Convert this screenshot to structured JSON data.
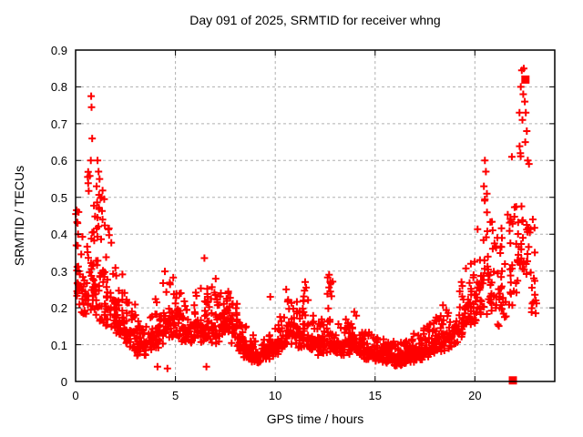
{
  "chart_data": {
    "type": "scatter",
    "title": "Day 091 of 2025, SRMTID for receiver whng",
    "xlabel": "GPS time / hours",
    "ylabel": "SRMTID / TECUs",
    "xlim": [
      0,
      24
    ],
    "ylim": [
      0,
      0.9
    ],
    "grid": true,
    "legend": "none",
    "x_tick_values": [
      0,
      5,
      10,
      15,
      20
    ],
    "x_tick_labels": [
      "0",
      "5",
      "10",
      "15",
      "20"
    ],
    "y_tick_values": [
      0,
      0.1,
      0.2,
      0.3,
      0.4,
      0.5,
      0.6,
      0.7,
      0.8,
      0.9
    ],
    "y_tick_labels": [
      "0",
      "0.1",
      "0.2",
      "0.3",
      "0.4",
      "0.5",
      "0.6",
      "0.7",
      "0.8",
      "0.9"
    ],
    "colors": {
      "marker": "#ff0000",
      "grid": "#b0b0b0",
      "axis": "#000000"
    },
    "series": [
      {
        "name": "srmtid-plus-markers",
        "marker": "plus",
        "color": "#ff0000",
        "bin_format": [
          "hour_start",
          "hour_end",
          "count",
          "y_min",
          "y_max"
        ],
        "density_bins": [
          [
            0.0,
            0.3,
            22,
            0.2,
            0.47
          ],
          [
            0.3,
            0.6,
            22,
            0.18,
            0.4
          ],
          [
            0.6,
            0.9,
            26,
            0.17,
            0.58
          ],
          [
            0.9,
            1.2,
            28,
            0.18,
            0.56
          ],
          [
            1.2,
            1.5,
            26,
            0.15,
            0.52
          ],
          [
            1.5,
            1.8,
            24,
            0.14,
            0.42
          ],
          [
            1.8,
            2.1,
            24,
            0.13,
            0.35
          ],
          [
            2.1,
            2.4,
            22,
            0.12,
            0.3
          ],
          [
            2.4,
            2.7,
            22,
            0.1,
            0.26
          ],
          [
            2.7,
            3.0,
            22,
            0.08,
            0.22
          ],
          [
            3.0,
            3.3,
            24,
            0.07,
            0.17
          ],
          [
            3.3,
            3.6,
            22,
            0.07,
            0.16
          ],
          [
            3.6,
            3.9,
            20,
            0.08,
            0.2
          ],
          [
            3.9,
            4.2,
            20,
            0.09,
            0.24
          ],
          [
            4.2,
            4.5,
            22,
            0.1,
            0.31
          ],
          [
            4.5,
            4.8,
            20,
            0.1,
            0.27
          ],
          [
            4.8,
            5.1,
            20,
            0.1,
            0.32
          ],
          [
            5.1,
            5.4,
            20,
            0.1,
            0.24
          ],
          [
            5.4,
            5.7,
            20,
            0.1,
            0.22
          ],
          [
            5.7,
            6.0,
            20,
            0.1,
            0.24
          ],
          [
            6.0,
            6.3,
            20,
            0.1,
            0.26
          ],
          [
            6.3,
            6.6,
            22,
            0.11,
            0.34
          ],
          [
            6.6,
            6.9,
            20,
            0.1,
            0.28
          ],
          [
            6.9,
            7.2,
            22,
            0.1,
            0.28
          ],
          [
            7.2,
            7.5,
            22,
            0.11,
            0.26
          ],
          [
            7.5,
            7.8,
            22,
            0.12,
            0.25
          ],
          [
            7.8,
            8.1,
            22,
            0.1,
            0.22
          ],
          [
            8.1,
            8.4,
            22,
            0.08,
            0.18
          ],
          [
            8.4,
            8.7,
            24,
            0.06,
            0.15
          ],
          [
            8.7,
            9.0,
            22,
            0.05,
            0.13
          ],
          [
            9.0,
            9.3,
            22,
            0.05,
            0.12
          ],
          [
            9.3,
            9.6,
            22,
            0.06,
            0.13
          ],
          [
            9.6,
            9.9,
            22,
            0.06,
            0.14
          ],
          [
            9.9,
            10.2,
            22,
            0.07,
            0.16
          ],
          [
            10.2,
            10.5,
            22,
            0.08,
            0.18
          ],
          [
            10.5,
            10.8,
            22,
            0.1,
            0.24
          ],
          [
            10.8,
            11.1,
            22,
            0.1,
            0.22
          ],
          [
            11.1,
            11.4,
            22,
            0.09,
            0.2
          ],
          [
            11.4,
            11.7,
            22,
            0.09,
            0.26
          ],
          [
            11.7,
            12.0,
            22,
            0.08,
            0.18
          ],
          [
            12.0,
            12.3,
            22,
            0.07,
            0.16
          ],
          [
            12.3,
            12.6,
            22,
            0.07,
            0.18
          ],
          [
            12.6,
            12.9,
            24,
            0.08,
            0.29
          ],
          [
            12.9,
            13.2,
            22,
            0.07,
            0.16
          ],
          [
            13.2,
            13.5,
            22,
            0.07,
            0.15
          ],
          [
            13.5,
            13.8,
            22,
            0.07,
            0.17
          ],
          [
            13.8,
            14.1,
            24,
            0.08,
            0.19
          ],
          [
            14.1,
            14.4,
            22,
            0.07,
            0.16
          ],
          [
            14.4,
            14.7,
            24,
            0.06,
            0.14
          ],
          [
            14.7,
            15.0,
            24,
            0.06,
            0.13
          ],
          [
            15.0,
            15.3,
            24,
            0.05,
            0.12
          ],
          [
            15.3,
            15.6,
            24,
            0.05,
            0.12
          ],
          [
            15.6,
            15.9,
            24,
            0.05,
            0.11
          ],
          [
            15.9,
            16.2,
            24,
            0.04,
            0.11
          ],
          [
            16.2,
            16.5,
            24,
            0.04,
            0.11
          ],
          [
            16.5,
            16.8,
            24,
            0.05,
            0.12
          ],
          [
            16.8,
            17.1,
            24,
            0.05,
            0.13
          ],
          [
            17.1,
            17.4,
            22,
            0.05,
            0.14
          ],
          [
            17.4,
            17.7,
            22,
            0.06,
            0.15
          ],
          [
            17.7,
            18.0,
            22,
            0.07,
            0.16
          ],
          [
            18.0,
            18.3,
            22,
            0.08,
            0.19
          ],
          [
            18.3,
            18.6,
            20,
            0.08,
            0.21
          ],
          [
            18.6,
            18.9,
            20,
            0.09,
            0.2
          ],
          [
            18.9,
            19.2,
            20,
            0.1,
            0.23
          ],
          [
            19.2,
            19.5,
            20,
            0.12,
            0.28
          ],
          [
            19.5,
            19.8,
            20,
            0.14,
            0.35
          ],
          [
            19.8,
            20.1,
            20,
            0.15,
            0.38
          ],
          [
            20.1,
            20.4,
            20,
            0.17,
            0.42
          ],
          [
            20.4,
            20.7,
            20,
            0.18,
            0.5
          ],
          [
            20.7,
            21.0,
            18,
            0.18,
            0.45
          ],
          [
            21.0,
            21.3,
            16,
            0.15,
            0.4
          ],
          [
            21.3,
            21.6,
            16,
            0.17,
            0.45
          ],
          [
            21.6,
            21.9,
            16,
            0.2,
            0.52
          ],
          [
            21.9,
            22.2,
            15,
            0.22,
            0.6
          ],
          [
            22.2,
            22.5,
            15,
            0.25,
            0.78
          ],
          [
            22.5,
            22.8,
            14,
            0.28,
            0.62
          ],
          [
            22.8,
            23.1,
            10,
            0.15,
            0.45
          ]
        ],
        "outlier_points": [
          [
            0.05,
            0.465
          ],
          [
            0.1,
            0.43
          ],
          [
            0.78,
            0.775
          ],
          [
            0.8,
            0.745
          ],
          [
            0.83,
            0.66
          ],
          [
            0.76,
            0.6
          ],
          [
            1.1,
            0.6
          ],
          [
            1.15,
            0.57
          ],
          [
            1.2,
            0.55
          ],
          [
            1.05,
            0.53
          ],
          [
            1.3,
            0.5
          ],
          [
            4.1,
            0.04
          ],
          [
            4.6,
            0.035
          ],
          [
            6.45,
            0.335
          ],
          [
            6.55,
            0.04
          ],
          [
            9.75,
            0.23
          ],
          [
            10.55,
            0.25
          ],
          [
            11.5,
            0.27
          ],
          [
            11.55,
            0.255
          ],
          [
            12.7,
            0.29
          ],
          [
            12.75,
            0.27
          ],
          [
            20.45,
            0.53
          ],
          [
            20.5,
            0.6
          ],
          [
            20.55,
            0.57
          ],
          [
            20.6,
            0.51
          ],
          [
            21.85,
            0.61
          ],
          [
            22.3,
            0.8
          ],
          [
            22.35,
            0.845
          ],
          [
            22.45,
            0.85
          ],
          [
            22.42,
            0.78
          ],
          [
            22.5,
            0.76
          ],
          [
            22.55,
            0.73
          ],
          [
            22.38,
            0.71
          ],
          [
            22.6,
            0.68
          ],
          [
            22.52,
            0.65
          ],
          [
            22.28,
            0.62
          ],
          [
            22.65,
            0.6
          ],
          [
            22.9,
            0.44
          ],
          [
            23.0,
            0.35
          ],
          [
            22.95,
            0.28
          ],
          [
            23.05,
            0.22
          ]
        ]
      },
      {
        "name": "filled-square-markers",
        "marker": "filled-square",
        "color": "#ff0000",
        "points": [
          [
            21.9,
            0.003
          ],
          [
            22.53,
            0.82
          ]
        ]
      }
    ]
  }
}
